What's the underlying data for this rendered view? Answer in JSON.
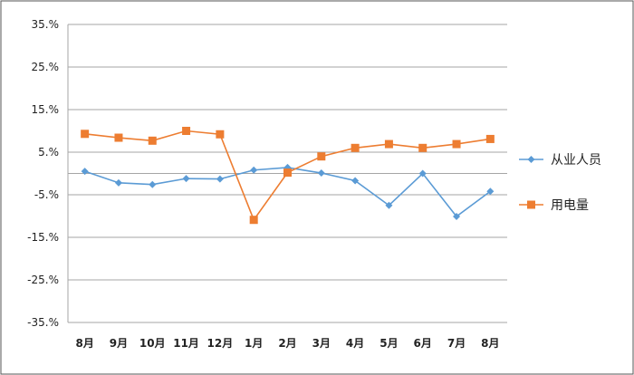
{
  "chart_data": {
    "type": "line",
    "categories": [
      "8月",
      "9月",
      "10月",
      "11月",
      "12月",
      "1月",
      "2月",
      "3月",
      "4月",
      "5月",
      "6月",
      "7月",
      "8月"
    ],
    "y_tick_labels": [
      "35.%",
      "25.%",
      "15.%",
      "5.%",
      "-5.%",
      "-15.%",
      "-25.%",
      "-35.%"
    ],
    "y_tick_values": [
      35,
      25,
      15,
      5,
      -5,
      -15,
      -25,
      -35
    ],
    "ylim": [
      -35,
      35
    ],
    "grid": true,
    "legend_position": "right",
    "series": [
      {
        "name": "从业人员",
        "color": "#5b9bd5",
        "marker": "diamond",
        "values": [
          0.5,
          -2.2,
          -2.6,
          -1.2,
          -1.3,
          0.8,
          1.4,
          0.1,
          -1.7,
          -7.5,
          0.0,
          -10.1,
          -4.2
        ]
      },
      {
        "name": "用电量",
        "color": "#ed7d31",
        "marker": "square",
        "values": [
          9.3,
          8.4,
          7.7,
          10.0,
          9.2,
          -10.9,
          0.2,
          4.0,
          6.0,
          6.9,
          6.0,
          6.9,
          8.1
        ]
      }
    ]
  }
}
